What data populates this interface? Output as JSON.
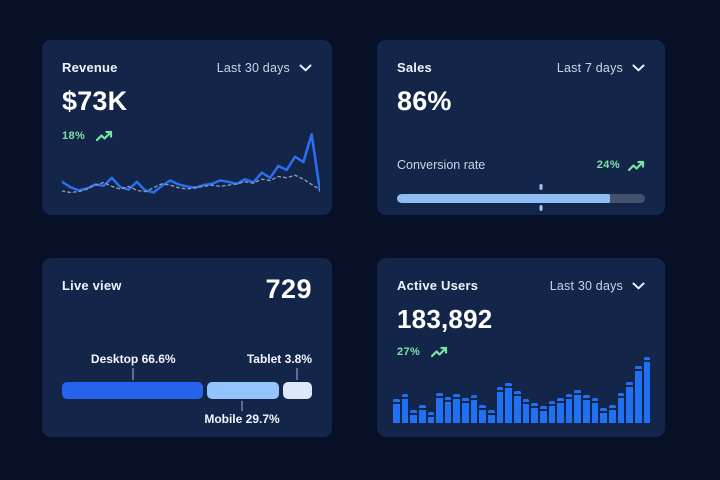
{
  "colors": {
    "page_bg": "#071027",
    "card_bg": "#14254a",
    "accent_blue": "#2070f4",
    "line_blue": "#2b6ff0",
    "light_blue": "#93c5fd",
    "pale_blue": "#dce9fb",
    "progress_fill": "#8fbcf2",
    "track_gray": "#44516c",
    "green": "#7de2a6",
    "muted_text": "#c9d4e6"
  },
  "icons": {
    "chevron_down": "chevron-down-icon",
    "trend_up": "trending-up-icon"
  },
  "cards": {
    "revenue": {
      "title": "Revenue",
      "period": "Last 30 days",
      "value": "$73K",
      "delta": "18%"
    },
    "sales": {
      "title": "Sales",
      "period": "Last 7 days",
      "value": "86%",
      "metric_label": "Conversion rate",
      "delta": "24%"
    },
    "live_view": {
      "title": "Live view",
      "value": "729"
    },
    "active_users": {
      "title": "Active Users",
      "period": "Last 30 days",
      "value": "183,892",
      "delta": "27%"
    }
  },
  "chart_data": [
    {
      "id": "revenue-trend",
      "type": "line",
      "title": "Revenue",
      "period": "Last 30 days",
      "axes": "hidden",
      "grid": false,
      "legend": "none",
      "values_scale": "relative-0-100",
      "ylim": [
        0,
        100
      ],
      "series": [
        {
          "name": "current",
          "style": "solid",
          "color": "#2b6ff0",
          "values": [
            20,
            12,
            7,
            10,
            16,
            14,
            26,
            12,
            8,
            20,
            7,
            4,
            14,
            22,
            16,
            13,
            11,
            15,
            17,
            22,
            20,
            17,
            24,
            19,
            34,
            26,
            44,
            38,
            58,
            50,
            92,
            6
          ]
        },
        {
          "name": "previous",
          "style": "dashed",
          "color": "#8fa0b8",
          "values": [
            6,
            4,
            5,
            9,
            15,
            19,
            13,
            9,
            13,
            7,
            5,
            11,
            17,
            15,
            11,
            9,
            11,
            13,
            15,
            13,
            15,
            17,
            20,
            18,
            24,
            22,
            28,
            26,
            30,
            24,
            16,
            8
          ]
        }
      ]
    },
    {
      "id": "conversion-progress",
      "type": "progress",
      "label": "Conversion rate",
      "value_percent": 86,
      "marker_percent": 58,
      "fill_color": "#8fbcf2",
      "track_color": "#44516c",
      "marker_color": "#9cc3f5"
    },
    {
      "id": "device-split",
      "type": "stacked-bar",
      "title": "Live view",
      "segments": [
        {
          "name": "Desktop",
          "label": "Desktop 66.6%",
          "percent": 66.6,
          "color": "#2563eb",
          "display_width": 56.5,
          "label_side": "top",
          "leader_at": 28.5
        },
        {
          "name": "Mobile",
          "label": "Mobile 29.7%",
          "percent": 29.7,
          "color": "#93c5fd",
          "display_width": 29,
          "label_side": "bottom",
          "leader_at": 72
        },
        {
          "name": "Tablet",
          "label": "Tablet 3.8%",
          "percent": 3.8,
          "color": "#dce9fb",
          "display_width": 11.5,
          "label_side": "top",
          "leader_at": 94
        }
      ]
    },
    {
      "id": "active-users-bars",
      "type": "bar",
      "title": "Active Users",
      "period": "Last 30 days",
      "axes": "hidden",
      "bar_color": "#2070f4",
      "ylim": [
        0,
        100
      ],
      "values_scale": "relative-0-100",
      "values": [
        36,
        44,
        20,
        28,
        16,
        46,
        40,
        44,
        38,
        42,
        28,
        20,
        54,
        60,
        48,
        36,
        30,
        26,
        34,
        38,
        44,
        50,
        42,
        38,
        22,
        28,
        45,
        62,
        86,
        100
      ]
    }
  ]
}
